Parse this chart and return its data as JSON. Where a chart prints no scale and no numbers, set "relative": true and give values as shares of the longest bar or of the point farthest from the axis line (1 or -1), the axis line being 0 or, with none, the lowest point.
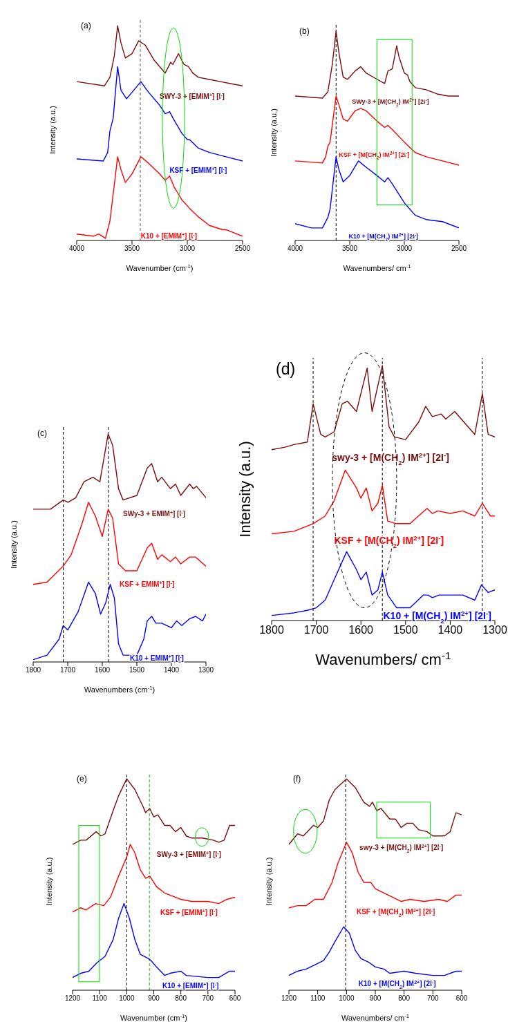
{
  "chart_data": [
    {
      "type": "line",
      "title": "(a)",
      "xlabel": "Wavenumber (cm$^{-1}$)",
      "ylabel": "Intensity (a.u.)",
      "relative": true,
      "xlim": [
        4000,
        2500
      ],
      "xticks": [
        4000,
        3500,
        3000,
        2500
      ],
      "ref_lines": [
        {
          "axis": "x",
          "value": 3425,
          "color": "#555555",
          "line_style": "dashed"
        }
      ],
      "series": [
        {
          "name": "SWY-3 + [EMIM$^{+}$] [I$^{-}$]",
          "color": "#7a0c0c",
          "x": [
            4000,
            3750,
            3700,
            3660,
            3630,
            3600,
            3560,
            3500,
            3440,
            3380,
            3300,
            3200,
            3150,
            3130,
            3080,
            3030,
            2990,
            2950,
            2900,
            2800,
            2700,
            2600,
            2500
          ],
          "values": [
            0.74,
            0.72,
            0.76,
            0.86,
            1.0,
            0.92,
            0.85,
            0.87,
            0.93,
            0.91,
            0.84,
            0.78,
            0.83,
            0.82,
            0.87,
            0.82,
            0.81,
            0.78,
            0.76,
            0.75,
            0.74,
            0.73,
            0.72
          ]
        },
        {
          "name": "KSF + [EMIM$^{+}$] [I$^{-}$]",
          "color": "#0000ff",
          "x": [
            4000,
            3760,
            3720,
            3700,
            3670,
            3630,
            3600,
            3550,
            3500,
            3420,
            3350,
            3250,
            3200,
            3160,
            3130,
            3050,
            3000,
            2980,
            2900,
            2800,
            2650,
            2500
          ],
          "values": [
            0.38,
            0.37,
            0.41,
            0.51,
            0.57,
            0.81,
            0.7,
            0.66,
            0.69,
            0.74,
            0.69,
            0.63,
            0.59,
            0.6,
            0.57,
            0.5,
            0.47,
            0.47,
            0.43,
            0.41,
            0.39,
            0.37
          ]
        },
        {
          "name": "K10 + [EMIM$^{+}$] [I$^{-}$]",
          "color": "#ff0000",
          "x": [
            4000,
            3850,
            3800,
            3740,
            3700,
            3660,
            3630,
            3600,
            3560,
            3500,
            3420,
            3350,
            3250,
            3200,
            3160,
            3120,
            3050,
            2980,
            2900,
            2800,
            2680,
            2650,
            2500
          ],
          "values": [
            0.03,
            0.02,
            0.03,
            0.01,
            0.09,
            0.26,
            0.39,
            0.33,
            0.27,
            0.31,
            0.39,
            0.36,
            0.31,
            0.28,
            0.3,
            0.25,
            0.19,
            0.15,
            0.11,
            0.07,
            0.05,
            0.05,
            0.02
          ]
        }
      ]
    },
    {
      "type": "line",
      "title": "(b)",
      "xlabel": "Wavenumbers/ cm$^{-1}$",
      "ylabel": "Intensity (a.u.)",
      "relative": true,
      "xlim": [
        4000,
        2500
      ],
      "xticks": [
        4000,
        3500,
        3000,
        2500
      ],
      "ref_lines": [
        {
          "axis": "x",
          "value": 3625,
          "color": "#000000",
          "line_style": "dashed"
        }
      ],
      "series": [
        {
          "name": "SWy-3 + [M(CH$_{2}$) IM$^{2+}$] [2I$^{-}$]",
          "color": "#7a0c0c",
          "x": [
            4000,
            3750,
            3700,
            3660,
            3625,
            3600,
            3560,
            3520,
            3450,
            3400,
            3350,
            3250,
            3180,
            3150,
            3110,
            3070,
            3050,
            3000,
            2970,
            2950,
            2900,
            2800,
            2700,
            2600,
            2500
          ],
          "values": [
            0.69,
            0.68,
            0.71,
            0.84,
            1.0,
            0.9,
            0.78,
            0.77,
            0.81,
            0.83,
            0.8,
            0.77,
            0.75,
            0.81,
            0.82,
            0.93,
            0.88,
            0.8,
            0.79,
            0.76,
            0.73,
            0.72,
            0.7,
            0.69,
            0.69
          ]
        },
        {
          "name": "KSF + [M(CH$_{2}$) IM$^{2+}$] [2I$^{-}$]",
          "color": "#ff0000",
          "x": [
            4000,
            3750,
            3720,
            3700,
            3680,
            3625,
            3600,
            3560,
            3520,
            3450,
            3400,
            3350,
            3250,
            3180,
            3150,
            3110,
            3000,
            2900,
            2800,
            2650,
            2500
          ],
          "values": [
            0.38,
            0.37,
            0.4,
            0.45,
            0.47,
            0.69,
            0.65,
            0.58,
            0.57,
            0.62,
            0.63,
            0.62,
            0.57,
            0.54,
            0.55,
            0.53,
            0.47,
            0.42,
            0.4,
            0.38,
            0.36
          ]
        },
        {
          "name": "K10 + [M(CH$_{2}$) IM$^{2+}$] [2I$^{-}$]",
          "color": "#0000ff",
          "x": [
            4000,
            3850,
            3750,
            3700,
            3680,
            3625,
            3600,
            3560,
            3500,
            3420,
            3350,
            3250,
            3180,
            3150,
            3110,
            3000,
            2900,
            2800,
            2650,
            2500
          ],
          "values": [
            0.08,
            0.06,
            0.06,
            0.11,
            0.15,
            0.4,
            0.34,
            0.28,
            0.31,
            0.38,
            0.35,
            0.31,
            0.28,
            0.3,
            0.27,
            0.18,
            0.12,
            0.1,
            0.09,
            0.06
          ]
        }
      ]
    },
    {
      "type": "line",
      "title": "(c)",
      "xlabel": "Wavenumbers (cm$^{-1}$)",
      "ylabel": "Intensity (a.u.)",
      "relative": true,
      "xlim": [
        1800,
        1300
      ],
      "xticks": [
        1800,
        1700,
        1600,
        1500,
        1400,
        1300
      ],
      "ref_lines": [
        {
          "axis": "x",
          "value": 1713,
          "color": "#000000",
          "line_style": "dashed"
        },
        {
          "axis": "x",
          "value": 1583,
          "color": "#000000",
          "line_style": "dashed"
        }
      ],
      "series": [
        {
          "name": "SWy-3 + EMIM$^{+}$] [I$^{-}$]",
          "color": "#7a0c0c",
          "x": [
            1800,
            1750,
            1713,
            1699,
            1677,
            1653,
            1627,
            1607,
            1583,
            1570,
            1553,
            1540,
            1500,
            1470,
            1457,
            1440,
            1428,
            1403,
            1388,
            1373,
            1347,
            1337,
            1327,
            1300
          ],
          "values": [
            0.67,
            0.67,
            0.71,
            0.7,
            0.72,
            0.79,
            0.81,
            0.79,
            1.0,
            0.95,
            0.76,
            0.71,
            0.73,
            0.85,
            0.87,
            0.79,
            0.81,
            0.76,
            0.78,
            0.73,
            0.78,
            0.76,
            0.77,
            0.72
          ]
        },
        {
          "name": "KSF + EMIM$^{+}$] [I$^{-}$]",
          "color": "#ff0000",
          "x": [
            1800,
            1760,
            1713,
            1690,
            1660,
            1640,
            1620,
            1600,
            1583,
            1570,
            1553,
            1533,
            1500,
            1470,
            1457,
            1440,
            1428,
            1403,
            1388,
            1373,
            1347,
            1330,
            1300
          ],
          "values": [
            0.34,
            0.35,
            0.42,
            0.47,
            0.6,
            0.7,
            0.64,
            0.55,
            0.67,
            0.63,
            0.43,
            0.4,
            0.4,
            0.5,
            0.52,
            0.45,
            0.47,
            0.44,
            0.46,
            0.43,
            0.46,
            0.46,
            0.42
          ]
        },
        {
          "name": "K10 + EMIM$^{+}$] [I$^{-}$]",
          "color": "#0000ff",
          "x": [
            1800,
            1760,
            1725,
            1713,
            1700,
            1670,
            1640,
            1620,
            1605,
            1590,
            1577,
            1565,
            1553,
            1540,
            1500,
            1480,
            1470,
            1457,
            1445,
            1428,
            1400,
            1385,
            1370,
            1347,
            1330,
            1310,
            1300
          ],
          "values": [
            0.01,
            0.03,
            0.1,
            0.16,
            0.14,
            0.22,
            0.35,
            0.3,
            0.21,
            0.26,
            0.34,
            0.28,
            0.08,
            0.03,
            0.03,
            0.1,
            0.18,
            0.2,
            0.17,
            0.17,
            0.15,
            0.18,
            0.16,
            0.19,
            0.2,
            0.18,
            0.21
          ]
        }
      ]
    },
    {
      "type": "line",
      "title": "(d)",
      "xlabel": "Wavenumbers/ cm$^{-1}$",
      "ylabel": "Intensity (a.u.)",
      "relative": true,
      "xlim": [
        1800,
        1300
      ],
      "xticks": [
        1800,
        1700,
        1600,
        1500,
        1400,
        1300
      ],
      "ref_lines": [
        {
          "axis": "x",
          "value": 1707,
          "color": "#000000",
          "line_style": "dashed"
        },
        {
          "axis": "x",
          "value": 1552,
          "color": "#000000",
          "line_style": "dashed"
        },
        {
          "axis": "x",
          "value": 1328,
          "color": "#000000",
          "line_style": "dashed"
        }
      ],
      "series": [
        {
          "name": "swy-3 + [M(CH$_{2}$) IM$^{2+}$] [2I$^{-}$]",
          "color": "#7a0c0c",
          "x": [
            1800,
            1770,
            1750,
            1720,
            1707,
            1690,
            1680,
            1660,
            1642,
            1630,
            1610,
            1586,
            1575,
            1552,
            1537,
            1525,
            1500,
            1470,
            1455,
            1440,
            1420,
            1410,
            1390,
            1370,
            1345,
            1328,
            1315,
            1300
          ],
          "values": [
            0.67,
            0.68,
            0.69,
            0.7,
            0.85,
            0.73,
            0.72,
            0.74,
            0.85,
            0.86,
            0.82,
            0.99,
            0.82,
            1.0,
            0.76,
            0.72,
            0.71,
            0.78,
            0.84,
            0.8,
            0.81,
            0.79,
            0.82,
            0.78,
            0.73,
            0.89,
            0.73,
            0.72
          ]
        },
        {
          "name": "KSF + [M(CH$_{2}$) IM$^{2+}$] [2I$^{-}$]",
          "color": "#ff0000",
          "x": [
            1800,
            1750,
            1707,
            1680,
            1660,
            1635,
            1610,
            1600,
            1588,
            1575,
            1562,
            1552,
            1540,
            1520,
            1490,
            1452,
            1440,
            1428,
            1400,
            1372,
            1345,
            1328,
            1310,
            1300
          ],
          "values": [
            0.34,
            0.35,
            0.38,
            0.41,
            0.47,
            0.59,
            0.52,
            0.48,
            0.52,
            0.43,
            0.46,
            0.53,
            0.39,
            0.38,
            0.38,
            0.44,
            0.42,
            0.43,
            0.42,
            0.43,
            0.41,
            0.46,
            0.41,
            0.41
          ]
        },
        {
          "name": "K10 + [M(CH$_{2}$) IM$^{2+}$] [2I$^{-}$]",
          "color": "#0000ff",
          "x": [
            1800,
            1750,
            1720,
            1700,
            1680,
            1660,
            1632,
            1610,
            1600,
            1588,
            1575,
            1562,
            1552,
            1540,
            1520,
            1490,
            1460,
            1450,
            1440,
            1425,
            1400,
            1372,
            1345,
            1330,
            1315,
            1300
          ],
          "values": [
            0.02,
            0.03,
            0.04,
            0.05,
            0.08,
            0.16,
            0.27,
            0.2,
            0.16,
            0.19,
            0.1,
            0.12,
            0.19,
            0.1,
            0.05,
            0.05,
            0.1,
            0.1,
            0.09,
            0.1,
            0.1,
            0.1,
            0.08,
            0.14,
            0.11,
            0.12
          ]
        }
      ]
    },
    {
      "type": "line",
      "title": "(e)",
      "xlabel": "Wavenumber (cm$^{-1}$)",
      "ylabel": "Intensity (a.u.)",
      "relative": true,
      "xlim": [
        1200,
        600
      ],
      "xticks": [
        1200,
        1100,
        1000,
        900,
        800,
        700,
        600
      ],
      "ref_lines": [
        {
          "axis": "x",
          "value": 1000,
          "color": "#000000",
          "line_style": "dashed"
        },
        {
          "axis": "x",
          "value": 916,
          "color": "#00cc00",
          "line_style": "dashed"
        }
      ],
      "series": [
        {
          "name": "SWy-3 + [EMIM$^{+}$] [I$^{-}$]",
          "color": "#7a0c0c",
          "x": [
            1200,
            1170,
            1150,
            1113,
            1095,
            1080,
            1050,
            1030,
            1000,
            970,
            940,
            930,
            915,
            900,
            885,
            860,
            840,
            820,
            800,
            780,
            760,
            720,
            680,
            660,
            640,
            620,
            600
          ],
          "values": [
            0.69,
            0.71,
            0.71,
            0.75,
            0.73,
            0.74,
            0.85,
            0.92,
            1.0,
            0.95,
            0.87,
            0.84,
            0.86,
            0.82,
            0.83,
            0.78,
            0.78,
            0.75,
            0.77,
            0.73,
            0.72,
            0.72,
            0.71,
            0.7,
            0.71,
            0.78,
            0.78
          ]
        },
        {
          "name": "KSF + [EMIM$^{+}$] [I$^{-}$]",
          "color": "#ff0000",
          "x": [
            1200,
            1170,
            1150,
            1115,
            1085,
            1060,
            1030,
            1000,
            987,
            970,
            950,
            930,
            915,
            890,
            860,
            840,
            800,
            760,
            700,
            660,
            630,
            600
          ],
          "values": [
            0.37,
            0.39,
            0.38,
            0.41,
            0.4,
            0.44,
            0.54,
            0.63,
            0.69,
            0.65,
            0.57,
            0.53,
            0.54,
            0.49,
            0.46,
            0.45,
            0.43,
            0.42,
            0.42,
            0.41,
            0.43,
            0.44
          ]
        },
        {
          "name": "K10 + [EMIM$^{+}$] [I$^{-}$]",
          "color": "#0000ff",
          "x": [
            1200,
            1170,
            1140,
            1110,
            1080,
            1050,
            1030,
            1010,
            990,
            970,
            950,
            920,
            910,
            890,
            860,
            840,
            800,
            780,
            700,
            660,
            620,
            600
          ],
          "values": [
            0.06,
            0.08,
            0.09,
            0.13,
            0.16,
            0.24,
            0.34,
            0.41,
            0.34,
            0.24,
            0.17,
            0.15,
            0.14,
            0.11,
            0.07,
            0.08,
            0.09,
            0.07,
            0.06,
            0.06,
            0.09,
            0.09
          ]
        }
      ]
    },
    {
      "type": "line",
      "title": "(f)",
      "xlabel": "Wavenumbers/ cm$^{-1}$",
      "ylabel": "Intensity (a.u.)",
      "relative": true,
      "xlim": [
        1200,
        600
      ],
      "xticks": [
        1200,
        1100,
        1000,
        900,
        800,
        700,
        600
      ],
      "ref_lines": [
        {
          "axis": "x",
          "value": 1003,
          "color": "#000000",
          "line_style": "dashed"
        }
      ],
      "series": [
        {
          "name": "swy-3 + [M(CH$_{2}$) IM$^{2+}$] [2I$^{-}$]",
          "color": "#7a0c0c",
          "x": [
            1200,
            1170,
            1150,
            1115,
            1100,
            1080,
            1060,
            1040,
            1000,
            970,
            940,
            920,
            910,
            895,
            880,
            850,
            830,
            810,
            790,
            770,
            750,
            720,
            700,
            660,
            640,
            620,
            600
          ],
          "values": [
            0.69,
            0.74,
            0.73,
            0.78,
            0.77,
            0.8,
            0.9,
            0.95,
            1.0,
            0.96,
            0.89,
            0.87,
            0.89,
            0.85,
            0.86,
            0.81,
            0.81,
            0.77,
            0.79,
            0.79,
            0.76,
            0.75,
            0.73,
            0.73,
            0.75,
            0.84,
            0.83
          ]
        },
        {
          "name": "KSF + [M(CH$_{2}$) IM$^{2+}$] [2I$^{-}$]",
          "color": "#ff0000",
          "x": [
            1200,
            1170,
            1140,
            1110,
            1080,
            1050,
            1030,
            1000,
            980,
            960,
            940,
            915,
            900,
            870,
            840,
            810,
            780,
            730,
            680,
            650,
            620,
            600
          ],
          "values": [
            0.39,
            0.4,
            0.4,
            0.43,
            0.43,
            0.51,
            0.6,
            0.7,
            0.65,
            0.56,
            0.51,
            0.51,
            0.48,
            0.46,
            0.44,
            0.42,
            0.43,
            0.42,
            0.43,
            0.42,
            0.45,
            0.45
          ]
        },
        {
          "name": "K10 + [M(CH$_{2}$) IM$^{2+}$] [2I$^{-}$]",
          "color": "#0000ff",
          "x": [
            1200,
            1170,
            1140,
            1110,
            1080,
            1060,
            1040,
            1010,
            990,
            970,
            950,
            920,
            900,
            870,
            850,
            800,
            760,
            700,
            660,
            620,
            600
          ],
          "values": [
            0.07,
            0.09,
            0.1,
            0.12,
            0.14,
            0.18,
            0.23,
            0.3,
            0.27,
            0.19,
            0.15,
            0.13,
            0.11,
            0.1,
            0.08,
            0.09,
            0.08,
            0.07,
            0.07,
            0.09,
            0.09
          ]
        }
      ]
    }
  ]
}
